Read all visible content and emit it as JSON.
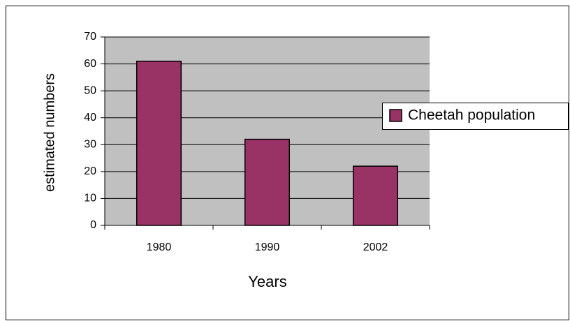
{
  "chart_data": {
    "type": "bar",
    "categories": [
      "1980",
      "1990",
      "2002"
    ],
    "series": [
      {
        "name": "Cheetah population",
        "color": "#993366",
        "values": [
          61,
          32,
          22
        ]
      }
    ],
    "ylim": [
      0,
      70
    ],
    "yticks": [
      0,
      10,
      20,
      30,
      40,
      50,
      60,
      70
    ],
    "xlabel": "Years",
    "ylabel": "estimated numbers",
    "grid": true,
    "legend": "right"
  }
}
